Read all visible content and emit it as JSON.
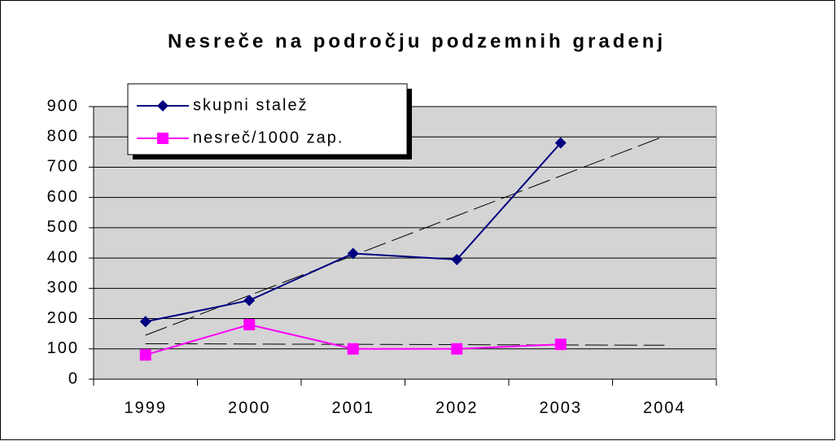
{
  "chart_data": {
    "type": "line",
    "title": "Nesreče na področju podzemnih gradenj",
    "categories": [
      "1999",
      "2000",
      "2001",
      "2002",
      "2003",
      "2004"
    ],
    "series": [
      {
        "name": "skupni stalež",
        "color": "#000080",
        "marker": "diamond",
        "trendline": true,
        "values": [
          190,
          260,
          415,
          395,
          780,
          null
        ]
      },
      {
        "name": "nesreč/1000 zap.",
        "color": "#ff00ff",
        "marker": "square",
        "trendline": true,
        "values": [
          80,
          180,
          100,
          100,
          115,
          null
        ]
      }
    ],
    "ylim": [
      0,
      900
    ],
    "yticks": [
      0,
      100,
      200,
      300,
      400,
      500,
      600,
      700,
      800,
      900
    ],
    "grid": true,
    "legend": "top-left"
  }
}
